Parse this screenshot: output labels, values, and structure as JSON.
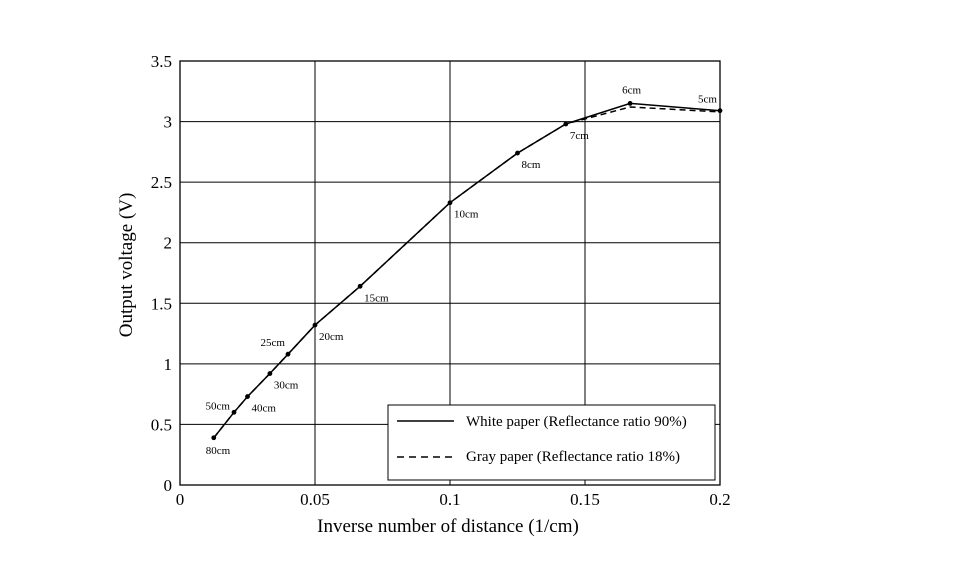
{
  "chart_data": {
    "type": "line",
    "xlabel": "Inverse number of distance (1/cm)",
    "ylabel": "Output voltage (V)",
    "xlim": [
      0,
      0.2
    ],
    "ylim": [
      0,
      3.5
    ],
    "grid": true,
    "legend_position": "bottom-right",
    "x_ticks": [
      {
        "value": 0,
        "label": "0"
      },
      {
        "value": 0.05,
        "label": "0.05"
      },
      {
        "value": 0.1,
        "label": "0.1"
      },
      {
        "value": 0.15,
        "label": "0.15"
      },
      {
        "value": 0.2,
        "label": "0.2"
      }
    ],
    "y_ticks": [
      {
        "value": 0,
        "label": "0"
      },
      {
        "value": 0.5,
        "label": "0.5"
      },
      {
        "value": 1,
        "label": "1"
      },
      {
        "value": 1.5,
        "label": "1.5"
      },
      {
        "value": 2,
        "label": "2"
      },
      {
        "value": 2.5,
        "label": "2.5"
      },
      {
        "value": 3,
        "label": "3"
      },
      {
        "value": 3.5,
        "label": "3.5"
      }
    ],
    "series": [
      {
        "name": "White paper (Reflectance ratio 90%)",
        "style": "solid",
        "color": "#000000",
        "x": [
          0.0125,
          0.02,
          0.025,
          0.0333,
          0.04,
          0.05,
          0.0667,
          0.1,
          0.125,
          0.1429,
          0.1667,
          0.2
        ],
        "y": [
          0.39,
          0.6,
          0.73,
          0.92,
          1.08,
          1.32,
          1.64,
          2.33,
          2.74,
          2.98,
          3.15,
          3.09
        ]
      },
      {
        "name": "Gray paper (Reflectance ratio 18%)",
        "style": "dashed",
        "color": "#000000",
        "x": [
          0.0125,
          0.02,
          0.025,
          0.0333,
          0.04,
          0.05,
          0.0667,
          0.1,
          0.125,
          0.1429,
          0.1667,
          0.2
        ],
        "y": [
          0.39,
          0.6,
          0.73,
          0.92,
          1.08,
          1.32,
          1.64,
          2.33,
          2.74,
          2.98,
          3.12,
          3.08
        ]
      }
    ],
    "point_labels": [
      {
        "text": "80cm",
        "x": 0.0125,
        "y": 0.39,
        "pos": "below"
      },
      {
        "text": "50cm",
        "x": 0.02,
        "y": 0.6,
        "pos": "left"
      },
      {
        "text": "40cm",
        "x": 0.025,
        "y": 0.73,
        "pos": "below-right"
      },
      {
        "text": "30cm",
        "x": 0.0333,
        "y": 0.92,
        "pos": "below-right"
      },
      {
        "text": "25cm",
        "x": 0.04,
        "y": 1.08,
        "pos": "above-left"
      },
      {
        "text": "20cm",
        "x": 0.05,
        "y": 1.32,
        "pos": "below-right"
      },
      {
        "text": "15cm",
        "x": 0.0667,
        "y": 1.64,
        "pos": "below-right"
      },
      {
        "text": "10cm",
        "x": 0.1,
        "y": 2.33,
        "pos": "below-right"
      },
      {
        "text": "8cm",
        "x": 0.125,
        "y": 2.74,
        "pos": "below-right"
      },
      {
        "text": "7cm",
        "x": 0.1429,
        "y": 2.98,
        "pos": "below-right"
      },
      {
        "text": "6cm",
        "x": 0.1667,
        "y": 3.15,
        "pos": "above"
      },
      {
        "text": "5cm",
        "x": 0.2,
        "y": 3.09,
        "pos": "above-left"
      }
    ]
  }
}
